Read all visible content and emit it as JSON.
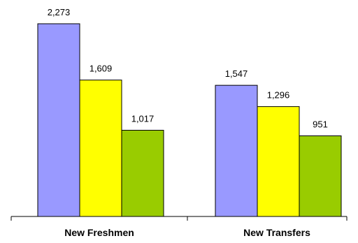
{
  "chart_data": {
    "type": "bar",
    "categories": [
      "New Freshmen",
      "New Transfers"
    ],
    "series": [
      {
        "values": [
          2273,
          1547
        ],
        "labels": [
          "2,273",
          "1,547"
        ],
        "color": "#9999ff"
      },
      {
        "values": [
          1609,
          1296
        ],
        "labels": [
          "1,609",
          "1,296"
        ],
        "color": "#ffff00"
      },
      {
        "values": [
          1017,
          951
        ],
        "labels": [
          "1,017",
          "951"
        ],
        "color": "#99cc00"
      }
    ],
    "ylim": [
      0,
      2273
    ],
    "grid": false,
    "legend": "none"
  }
}
